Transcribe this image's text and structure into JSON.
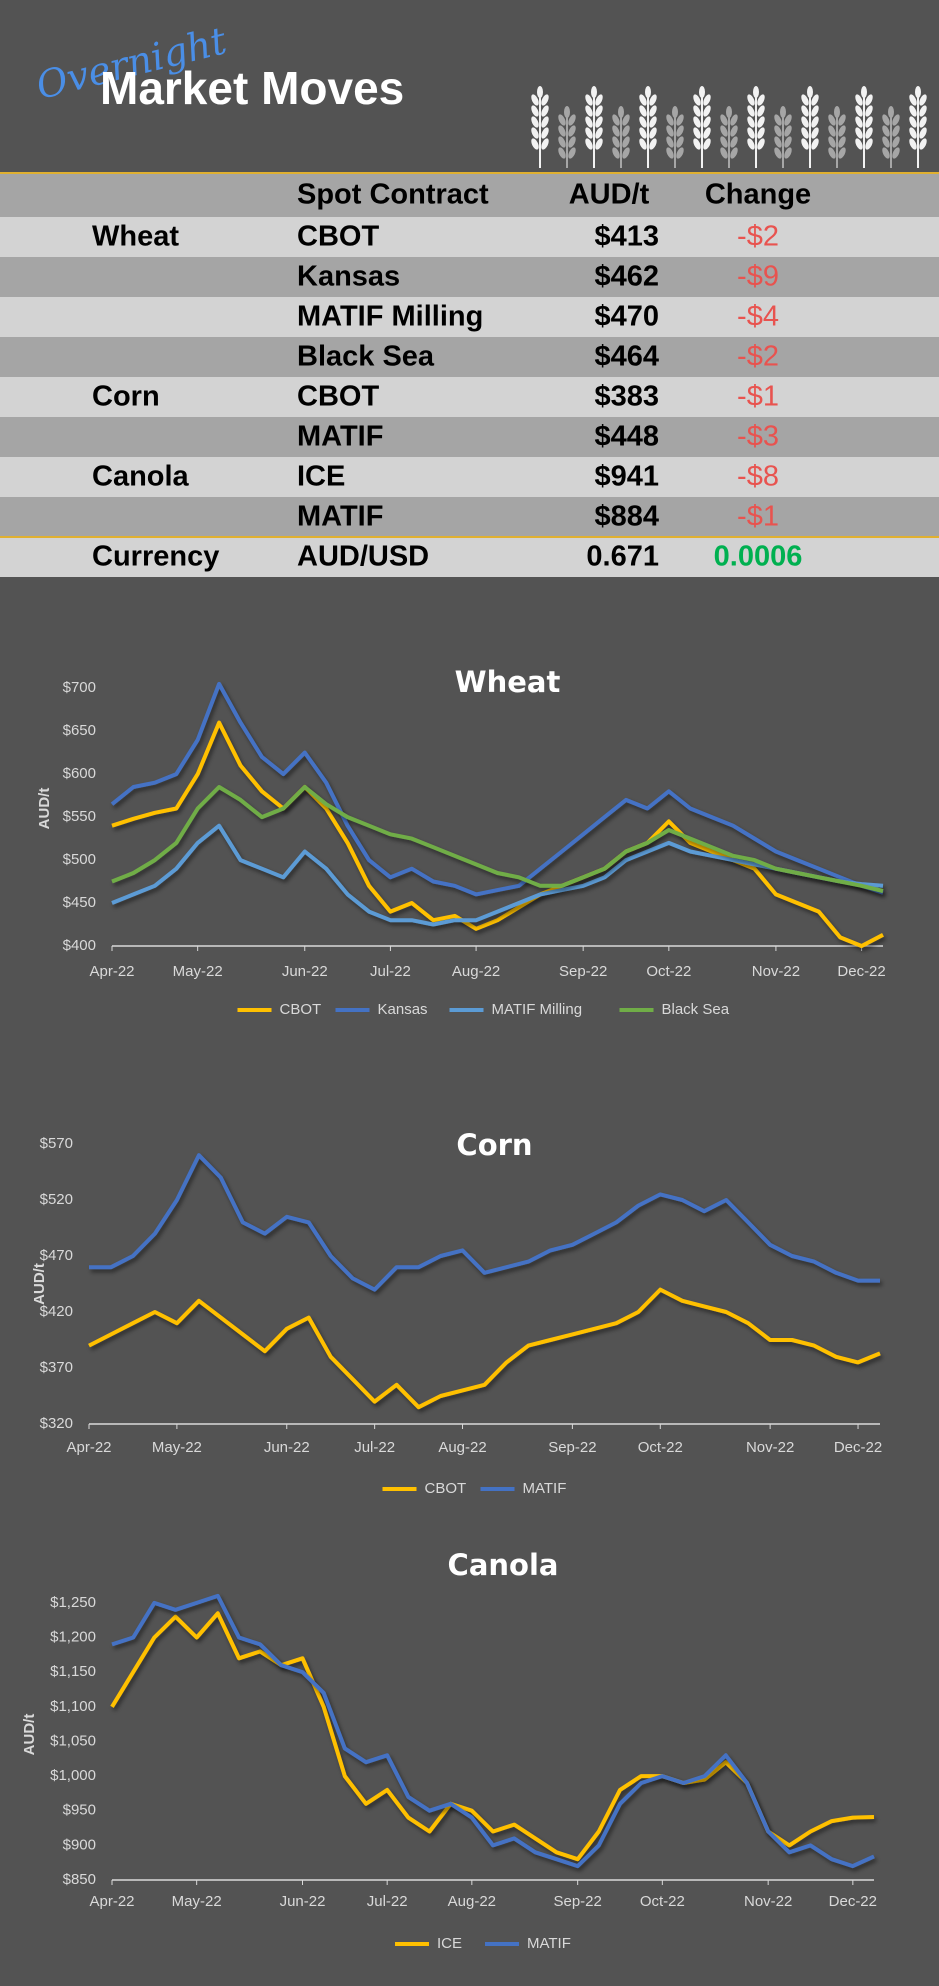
{
  "header": {
    "script_title": "Overnight",
    "title": "Market Moves"
  },
  "table": {
    "columns": [
      "Spot Contract",
      "AUD/t",
      "Change"
    ],
    "negative_color": "#e8534f",
    "positive_color": "#00b050",
    "rows": [
      {
        "group": "Wheat",
        "contract": "CBOT",
        "price": "$413",
        "change": "-$2"
      },
      {
        "contract": "Kansas",
        "price": "$462",
        "change": "-$9"
      },
      {
        "contract": "MATIF Milling",
        "price": "$470",
        "change": "-$4"
      },
      {
        "contract": "Black Sea",
        "price": "$464",
        "change": "-$2"
      },
      {
        "group": "Corn",
        "contract": "CBOT",
        "price": "$383",
        "change": "-$1"
      },
      {
        "contract": "MATIF",
        "price": "$448",
        "change": "-$3"
      },
      {
        "group": "Canola",
        "contract": "ICE",
        "price": "$941",
        "change": "-$8"
      },
      {
        "contract": "MATIF",
        "price": "$884",
        "change": "-$1"
      },
      {
        "group": "Currency",
        "contract": "AUD/USD",
        "price": "0.671",
        "change": "0.0006"
      }
    ]
  },
  "chart_data": [
    {
      "type": "line",
      "title": "Wheat",
      "y_label": "AUD/t",
      "legend": "bottom",
      "categories": [
        "Apr-22",
        null,
        null,
        null,
        "May-22",
        null,
        null,
        null,
        null,
        "Jun-22",
        null,
        null,
        null,
        "Jul-22",
        null,
        null,
        null,
        "Aug-22",
        null,
        null,
        null,
        null,
        "Sep-22",
        null,
        null,
        null,
        "Oct-22",
        null,
        null,
        null,
        null,
        "Nov-22",
        null,
        null,
        null,
        "Dec-22",
        null
      ],
      "series": [
        {
          "name": "CBOT",
          "color": "#ffc000",
          "values": [
            540,
            548,
            555,
            560,
            600,
            660,
            610,
            580,
            560,
            585,
            560,
            520,
            470,
            440,
            450,
            430,
            435,
            420,
            430,
            445,
            460,
            470,
            480,
            490,
            510,
            520,
            545,
            520,
            510,
            500,
            490,
            460,
            450,
            440,
            410,
            400,
            413
          ]
        },
        {
          "name": "Kansas",
          "color": "#4472c4",
          "values": [
            565,
            585,
            590,
            600,
            640,
            705,
            660,
            620,
            600,
            625,
            590,
            540,
            500,
            480,
            490,
            475,
            470,
            460,
            465,
            470,
            490,
            510,
            530,
            550,
            570,
            560,
            580,
            560,
            550,
            540,
            525,
            510,
            500,
            490,
            480,
            470,
            462
          ]
        },
        {
          "name": "MATIF Milling",
          "color": "#5b9bd5",
          "values": [
            450,
            460,
            470,
            490,
            520,
            540,
            500,
            490,
            480,
            510,
            490,
            460,
            440,
            430,
            430,
            425,
            430,
            430,
            440,
            450,
            460,
            465,
            470,
            480,
            500,
            510,
            520,
            510,
            505,
            500,
            495,
            490,
            485,
            480,
            475,
            472,
            470
          ]
        },
        {
          "name": "Black Sea",
          "color": "#70ad47",
          "values": [
            475,
            485,
            500,
            520,
            560,
            585,
            570,
            550,
            560,
            585,
            565,
            550,
            540,
            530,
            525,
            515,
            505,
            495,
            485,
            480,
            470,
            470,
            480,
            490,
            510,
            520,
            535,
            525,
            515,
            505,
            500,
            490,
            485,
            480,
            475,
            470,
            464
          ]
        }
      ],
      "ylim": [
        400,
        720
      ],
      "yticks": [
        {
          "value": 400,
          "label": "$400"
        },
        {
          "value": 450,
          "label": "$450"
        },
        {
          "value": 500,
          "label": "$500"
        },
        {
          "value": 550,
          "label": "$550"
        },
        {
          "value": 600,
          "label": "$600"
        },
        {
          "value": 650,
          "label": "$650"
        },
        {
          "value": 700,
          "label": "$700"
        }
      ]
    },
    {
      "type": "line",
      "title": "Corn",
      "y_label": "AUD/t",
      "legend": "bottom",
      "categories": [
        "Apr-22",
        null,
        null,
        null,
        "May-22",
        null,
        null,
        null,
        null,
        "Jun-22",
        null,
        null,
        null,
        "Jul-22",
        null,
        null,
        null,
        "Aug-22",
        null,
        null,
        null,
        null,
        "Sep-22",
        null,
        null,
        null,
        "Oct-22",
        null,
        null,
        null,
        null,
        "Nov-22",
        null,
        null,
        null,
        "Dec-22",
        null
      ],
      "series": [
        {
          "name": "CBOT",
          "color": "#ffc000",
          "values": [
            390,
            400,
            410,
            420,
            410,
            430,
            415,
            400,
            385,
            405,
            415,
            380,
            360,
            340,
            355,
            335,
            345,
            350,
            355,
            375,
            390,
            395,
            400,
            405,
            410,
            420,
            440,
            430,
            425,
            420,
            410,
            395,
            395,
            390,
            380,
            375,
            383
          ]
        },
        {
          "name": "MATIF",
          "color": "#4472c4",
          "values": [
            460,
            460,
            470,
            490,
            520,
            560,
            540,
            500,
            490,
            505,
            500,
            470,
            450,
            440,
            460,
            460,
            470,
            475,
            455,
            460,
            465,
            475,
            480,
            490,
            500,
            515,
            525,
            520,
            510,
            520,
            500,
            480,
            470,
            465,
            455,
            448,
            448
          ]
        }
      ],
      "ylim": [
        320,
        570
      ],
      "yticks": [
        {
          "value": 320,
          "label": "$320"
        },
        {
          "value": 370,
          "label": "$370"
        },
        {
          "value": 420,
          "label": "$420"
        },
        {
          "value": 470,
          "label": "$470"
        },
        {
          "value": 520,
          "label": "$520"
        },
        {
          "value": 570,
          "label": "$570"
        }
      ]
    },
    {
      "type": "line",
      "title": "Canola",
      "y_label": "AUD/t",
      "legend": "bottom",
      "categories": [
        "Apr-22",
        null,
        null,
        null,
        "May-22",
        null,
        null,
        null,
        null,
        "Jun-22",
        null,
        null,
        null,
        "Jul-22",
        null,
        null,
        null,
        "Aug-22",
        null,
        null,
        null,
        null,
        "Sep-22",
        null,
        null,
        null,
        "Oct-22",
        null,
        null,
        null,
        null,
        "Nov-22",
        null,
        null,
        null,
        "Dec-22",
        null
      ],
      "series": [
        {
          "name": "ICE",
          "color": "#ffc000",
          "values": [
            1100,
            1150,
            1200,
            1230,
            1200,
            1235,
            1170,
            1180,
            1160,
            1170,
            1100,
            1000,
            960,
            980,
            940,
            920,
            960,
            950,
            920,
            930,
            910,
            890,
            880,
            920,
            980,
            1000,
            1000,
            990,
            995,
            1020,
            990,
            920,
            900,
            920,
            935,
            940,
            941
          ]
        },
        {
          "name": "MATIF",
          "color": "#4472c4",
          "values": [
            1190,
            1200,
            1250,
            1240,
            1250,
            1260,
            1200,
            1190,
            1160,
            1150,
            1120,
            1040,
            1020,
            1030,
            970,
            950,
            960,
            940,
            900,
            910,
            890,
            880,
            870,
            900,
            960,
            990,
            1000,
            990,
            1000,
            1030,
            990,
            920,
            890,
            900,
            880,
            870,
            884
          ]
        }
      ],
      "ylim": [
        850,
        1270
      ],
      "yticks": [
        {
          "value": 850,
          "label": "$850"
        },
        {
          "value": 900,
          "label": "$900"
        },
        {
          "value": 950,
          "label": "$950"
        },
        {
          "value": 1000,
          "label": "$1,000"
        },
        {
          "value": 1050,
          "label": "$1,050"
        },
        {
          "value": 1100,
          "label": "$1,100"
        },
        {
          "value": 1150,
          "label": "$1,150"
        },
        {
          "value": 1200,
          "label": "$1,200"
        },
        {
          "value": 1250,
          "label": "$1,250"
        }
      ]
    }
  ]
}
